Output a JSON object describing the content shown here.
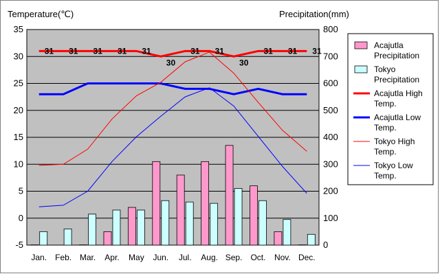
{
  "chart_data": {
    "type": "bar+line",
    "left_axis_label": "Temperature(℃)",
    "right_axis_label": "Precipitation(mm)",
    "left_ylim": [
      -5,
      35
    ],
    "left_ticks": [
      -5,
      0,
      5,
      10,
      15,
      20,
      25,
      30,
      35
    ],
    "right_ylim": [
      0,
      800
    ],
    "right_ticks": [
      0,
      100,
      200,
      300,
      400,
      500,
      600,
      700,
      800
    ],
    "categories": [
      "Jan.",
      "Feb.",
      "Mar.",
      "Apr.",
      "May",
      "Jun.",
      "Jul.",
      "Aug.",
      "Sep.",
      "Oct.",
      "Nov.",
      "Dec."
    ],
    "bar_series": [
      {
        "name": "Acajutla Precipitation",
        "color": "#ff99cc",
        "axis": "right",
        "values": [
          1,
          0,
          1,
          50,
          140,
          310,
          260,
          310,
          370,
          220,
          50,
          1
        ]
      },
      {
        "name": "Tokyo Precipitation",
        "color": "#ccffff",
        "axis": "right",
        "values": [
          50,
          60,
          115,
          130,
          130,
          165,
          160,
          155,
          210,
          165,
          95,
          40
        ]
      }
    ],
    "line_series": [
      {
        "name": "Acajutla High Temp.",
        "color": "#ff0000",
        "width": 3,
        "axis": "left",
        "values": [
          31,
          31,
          31,
          31,
          31,
          30,
          31,
          31,
          30,
          31,
          31,
          31
        ],
        "labels": [
          "31",
          "31",
          "31",
          "31",
          "31",
          "30",
          "31",
          "31",
          "30",
          "31",
          "31",
          "31"
        ]
      },
      {
        "name": "Acajutla Low Temp.",
        "color": "#0000ff",
        "width": 3,
        "axis": "left",
        "values": [
          23,
          23,
          25,
          25,
          25,
          25,
          24,
          24,
          23,
          24,
          23,
          23
        ]
      },
      {
        "name": "Tokyo High Temp.",
        "color": "#ff0000",
        "width": 1,
        "axis": "left",
        "values": [
          9.8,
          10,
          12.8,
          18.4,
          22.7,
          25.2,
          29,
          30.8,
          26.9,
          21.5,
          16.3,
          12.4
        ]
      },
      {
        "name": "Tokyo Low Temp.",
        "color": "#0000ff",
        "width": 1,
        "axis": "left",
        "values": [
          2.1,
          2.4,
          5,
          10.5,
          15.1,
          18.9,
          22.5,
          24.2,
          20.8,
          15.2,
          9.6,
          4.6
        ]
      }
    ],
    "legend": [
      {
        "label": "Acajutla\nPrecipitation",
        "kind": "bar",
        "color": "#ff99cc"
      },
      {
        "label": "Tokyo\nPrecipitation",
        "kind": "bar",
        "color": "#ccffff"
      },
      {
        "label": "Acajutla High\nTemp.",
        "kind": "line",
        "color": "#ff0000",
        "width": 3
      },
      {
        "label": "Acajutla Low\nTemp.",
        "kind": "line",
        "color": "#0000ff",
        "width": 3
      },
      {
        "label": "Tokyo High\nTemp.",
        "kind": "line",
        "color": "#ff0000",
        "width": 1
      },
      {
        "label": "Tokyo Low\nTemp.",
        "kind": "line",
        "color": "#0000ff",
        "width": 1
      }
    ],
    "legend_position": "right",
    "plot_background": "#c0c0c0",
    "grid": true
  }
}
